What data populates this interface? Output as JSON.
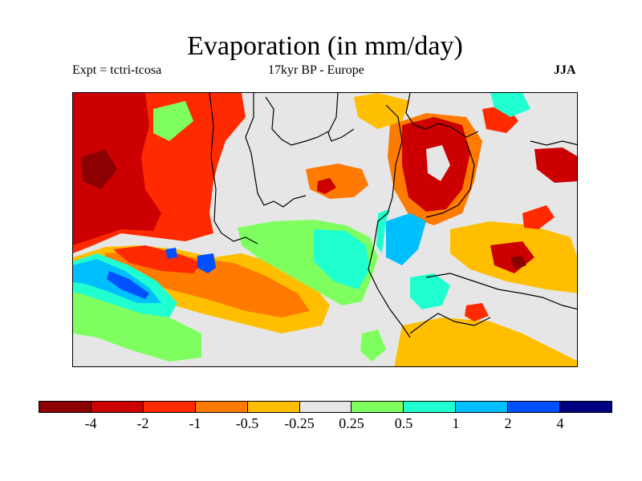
{
  "title": "Evaporation (in mm/day)",
  "subtitle_left": "Expt = tctri-tcosa",
  "subtitle_center": "17kyr BP - Europe",
  "subtitle_right": "JJA",
  "colorbar": {
    "colors": [
      "#8b0000",
      "#cc0000",
      "#ff2a00",
      "#ff7a00",
      "#ffbf00",
      "#e6e6e6",
      "#7fff5f",
      "#1fffcf",
      "#00bfff",
      "#0050ff",
      "#0018d0",
      "#000080"
    ],
    "labels": [
      "-4",
      "-2",
      "-1",
      "-0.5",
      "-0.25",
      "0.25",
      "0.5",
      "1",
      "2",
      "4"
    ]
  }
}
